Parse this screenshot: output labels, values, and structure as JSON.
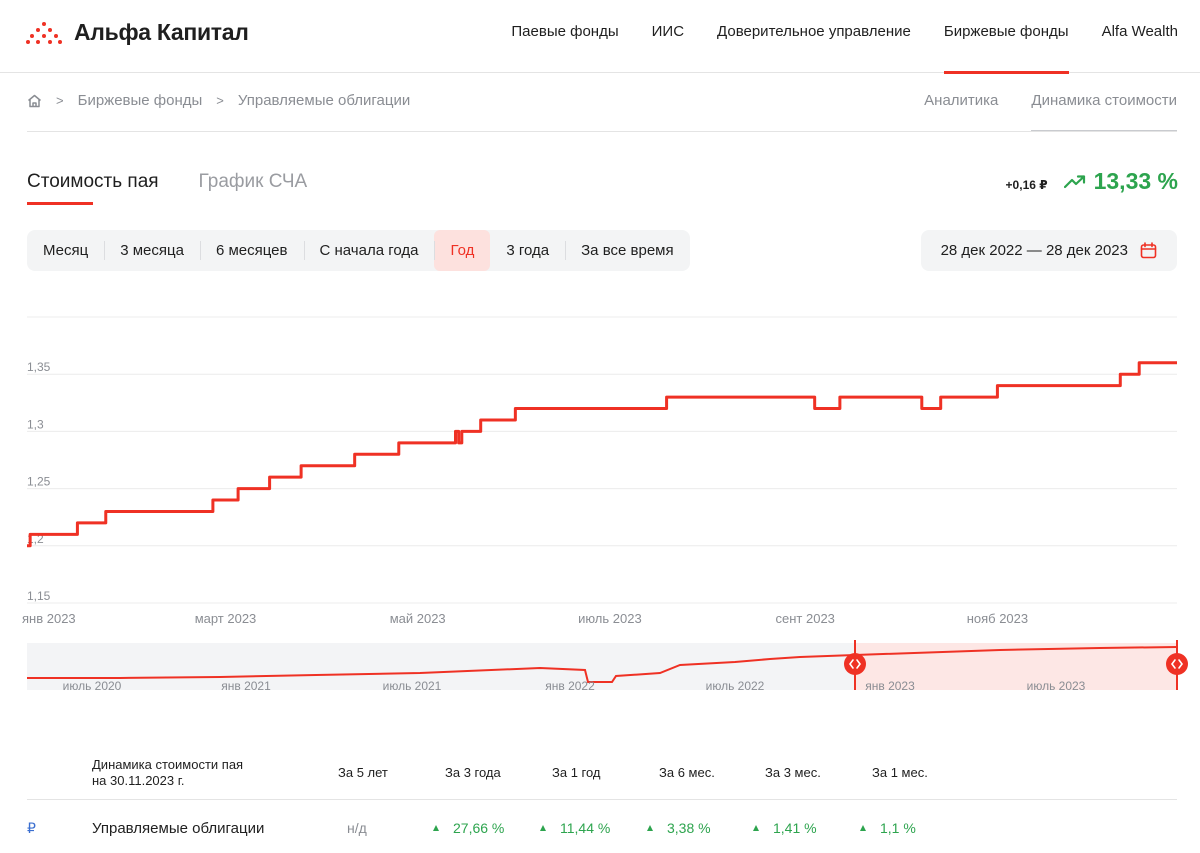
{
  "header": {
    "logo_text": "Альфа Капитал",
    "nav": [
      {
        "label": "Паевые фонды",
        "active": false
      },
      {
        "label": "ИИС",
        "active": false
      },
      {
        "label": "Доверительное управление",
        "active": false
      },
      {
        "label": "Биржевые фонды",
        "active": true
      },
      {
        "label": "Alfa Wealth",
        "active": false
      }
    ]
  },
  "breadcrumb": {
    "items": [
      "Биржевые фонды",
      "Управляемые облигации"
    ]
  },
  "subnav": {
    "items": [
      {
        "label": "Аналитика",
        "active": false
      },
      {
        "label": "Динамика стоимости",
        "active": true
      }
    ]
  },
  "tabs": [
    {
      "label": "Стоимость пая",
      "active": true
    },
    {
      "label": "График СЧА",
      "active": false
    }
  ],
  "change": {
    "absolute": "+0,16 ₽",
    "percent": "13,33 %"
  },
  "periods": [
    {
      "label": "Месяц",
      "active": false
    },
    {
      "label": "3 месяца",
      "active": false
    },
    {
      "label": "6 месяцев",
      "active": false
    },
    {
      "label": "С начала года",
      "active": false
    },
    {
      "label": "Год",
      "active": true
    },
    {
      "label": "3 года",
      "active": false
    },
    {
      "label": "За все время",
      "active": false
    }
  ],
  "date_range": "28 дек 2022 — 28 дек 2023",
  "colors": {
    "accent": "#ef3124",
    "positive": "#2da44e",
    "muted": "#8a8d93",
    "navigator_selected": "#fde7e5"
  },
  "chart_data": {
    "type": "line",
    "y_ticks": [
      "1,15",
      "1,2",
      "1,25",
      "1,3",
      "1,35"
    ],
    "y_tick_values": [
      1.15,
      1.2,
      1.25,
      1.3,
      1.35
    ],
    "ylim": [
      1.15,
      1.4
    ],
    "x_ticks": [
      "янв 2023",
      "март 2023",
      "май 2023",
      "июль 2023",
      "сент 2023",
      "нояб 2023"
    ],
    "x_tick_dates": [
      "2023-01-01",
      "2023-03-01",
      "2023-05-01",
      "2023-07-01",
      "2023-09-01",
      "2023-11-01"
    ],
    "x_range": [
      "2022-12-28",
      "2023-12-28"
    ],
    "grid": true,
    "series": [
      {
        "color": "#ef3124",
        "points": [
          [
            "2022-12-28",
            1.2
          ],
          [
            "2022-12-29",
            1.21
          ],
          [
            "2023-01-12",
            1.21
          ],
          [
            "2023-01-13",
            1.22
          ],
          [
            "2023-01-21",
            1.22
          ],
          [
            "2023-01-22",
            1.23
          ],
          [
            "2023-02-24",
            1.23
          ],
          [
            "2023-02-25",
            1.24
          ],
          [
            "2023-03-04",
            1.24
          ],
          [
            "2023-03-05",
            1.25
          ],
          [
            "2023-03-14",
            1.25
          ],
          [
            "2023-03-15",
            1.26
          ],
          [
            "2023-03-24",
            1.26
          ],
          [
            "2023-03-25",
            1.27
          ],
          [
            "2023-04-10",
            1.27
          ],
          [
            "2023-04-11",
            1.28
          ],
          [
            "2023-04-24",
            1.28
          ],
          [
            "2023-04-25",
            1.29
          ],
          [
            "2023-05-12",
            1.29
          ],
          [
            "2023-05-13",
            1.3
          ],
          [
            "2023-05-14",
            1.29
          ],
          [
            "2023-05-15",
            1.3
          ],
          [
            "2023-05-20",
            1.3
          ],
          [
            "2023-05-21",
            1.31
          ],
          [
            "2023-05-31",
            1.31
          ],
          [
            "2023-06-01",
            1.32
          ],
          [
            "2023-07-18",
            1.32
          ],
          [
            "2023-07-19",
            1.33
          ],
          [
            "2023-09-03",
            1.33
          ],
          [
            "2023-09-04",
            1.32
          ],
          [
            "2023-09-11",
            1.32
          ],
          [
            "2023-09-12",
            1.33
          ],
          [
            "2023-10-07",
            1.33
          ],
          [
            "2023-10-08",
            1.32
          ],
          [
            "2023-10-13",
            1.32
          ],
          [
            "2023-10-14",
            1.33
          ],
          [
            "2023-10-31",
            1.33
          ],
          [
            "2023-11-01",
            1.34
          ],
          [
            "2023-12-09",
            1.34
          ],
          [
            "2023-12-10",
            1.35
          ],
          [
            "2023-12-15",
            1.35
          ],
          [
            "2023-12-16",
            1.36
          ],
          [
            "2023-12-28",
            1.36
          ]
        ]
      }
    ]
  },
  "navigator": {
    "x_ticks": [
      "июль 2020",
      "янв 2021",
      "июль 2021",
      "янв 2022",
      "июль 2022",
      "янв 2023",
      "июль 2023"
    ]
  },
  "table": {
    "caption_line1": "Динамика стоимости пая",
    "caption_line2": "на 30.11.2023 г.",
    "columns": [
      "За 5 лет",
      "За 3 года",
      "За 1 год",
      "За 6 мес.",
      "За 3 мес.",
      "За 1 мес."
    ],
    "rows": [
      {
        "currency": "₽",
        "name": "Управляемые облигации",
        "values": [
          "н/д",
          "27,66 %",
          "11,44 %",
          "3,38 %",
          "1,41 %",
          "1,1 %"
        ]
      }
    ]
  }
}
